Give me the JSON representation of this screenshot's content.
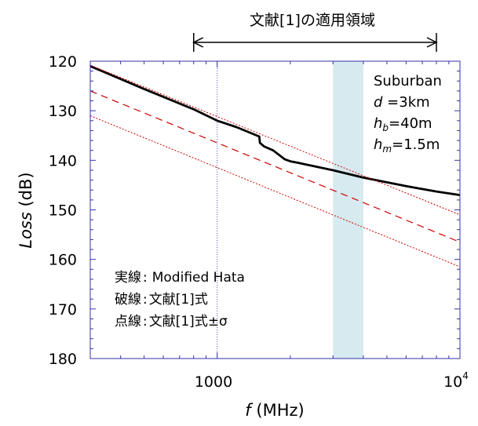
{
  "chart_data": {
    "type": "line",
    "xlabel_var": "f",
    "xlabel_unit": " (MHz)",
    "ylabel_var": "Loss",
    "ylabel_unit": " (dB)",
    "x_scale": "log",
    "xlim": [
      300,
      10000
    ],
    "ylim": [
      120,
      180
    ],
    "y_inverted": true,
    "y_ticks": [
      120,
      130,
      140,
      150,
      160,
      170,
      180
    ],
    "x_tick_1000": "1000",
    "x_tick_10000_base": "10",
    "x_tick_10000_exp": "4",
    "reference_line_x": 1000,
    "shaded_band": {
      "x": [
        3000,
        4000
      ],
      "color": "#d6eaef"
    },
    "range_arrow": {
      "label": "文献[1]の適用領域",
      "x": [
        800,
        8000
      ]
    },
    "conditions": {
      "environment": "Suburban",
      "d": {
        "var": "d",
        "value": " =3km"
      },
      "hb": {
        "var": "h",
        "sub": "b",
        "value": "=40m"
      },
      "hm": {
        "var": "h",
        "sub": "m",
        "value": "=1.5m"
      }
    },
    "legend": [
      {
        "prefix": "実線",
        "text": "Modified Hata"
      },
      {
        "prefix": "破線",
        "text": "文献[1]式"
      },
      {
        "prefix": "点線",
        "text": "文献[1]式±σ"
      }
    ],
    "series": [
      {
        "style": "solid",
        "color": "#000000",
        "points": [
          [
            300,
            121.0
          ],
          [
            500,
            125.6
          ],
          [
            800,
            129.7
          ],
          [
            1000,
            132.0
          ],
          [
            1200,
            133.3
          ],
          [
            1490,
            135.2
          ],
          [
            1500,
            136.5
          ],
          [
            1560,
            137.2
          ],
          [
            1700,
            138.0
          ],
          [
            1900,
            139.8
          ],
          [
            2000,
            140.2
          ],
          [
            2200,
            140.6
          ],
          [
            3000,
            142.0
          ],
          [
            4000,
            143.5
          ],
          [
            6000,
            145.2
          ],
          [
            8000,
            146.3
          ],
          [
            10000,
            147.0
          ]
        ]
      },
      {
        "style": "dashed",
        "color": "#cc0000",
        "points": [
          [
            300,
            126.0
          ],
          [
            10000,
            156.5
          ]
        ]
      },
      {
        "style": "dotted",
        "color": "#cc0000",
        "points": [
          [
            300,
            120.8
          ],
          [
            10000,
            151.0
          ]
        ]
      },
      {
        "style": "dotted",
        "color": "#cc0000",
        "points": [
          [
            300,
            131.0
          ],
          [
            10000,
            161.5
          ]
        ]
      }
    ]
  }
}
